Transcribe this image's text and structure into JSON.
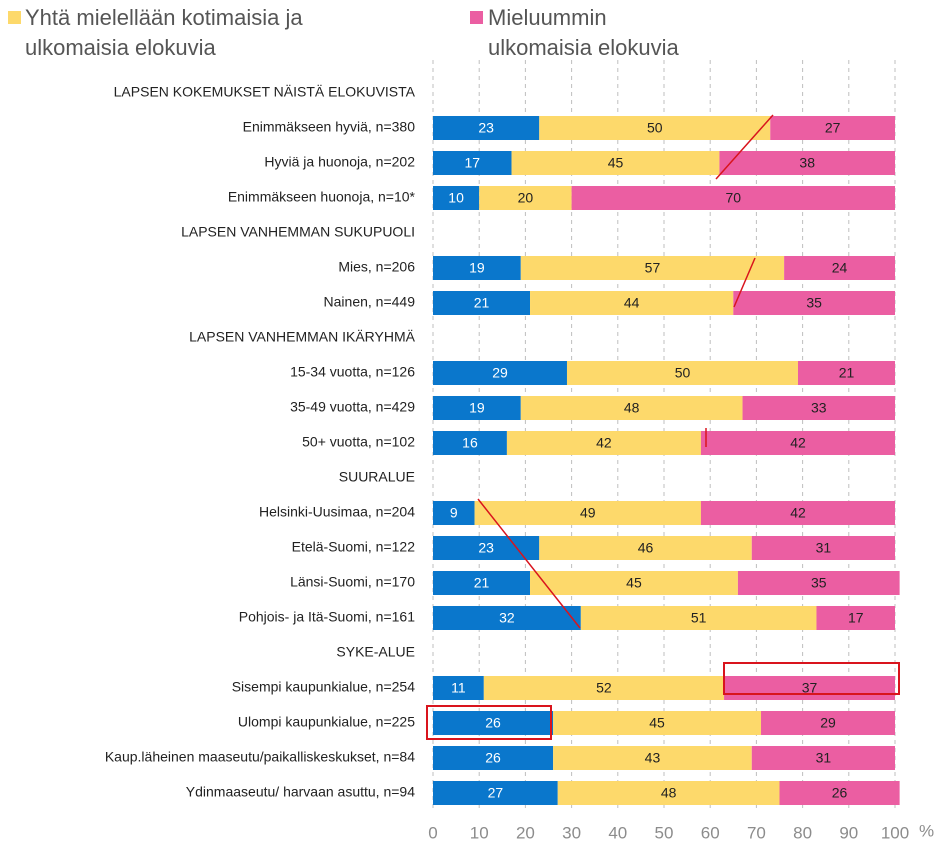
{
  "chart_data": {
    "type": "stacked-bar-horizontal",
    "categories": [
      "LAPSEN KOKEMUKSET NÄISTÄ ELOKUVISTA",
      "Enimmäkseen hyviä, n=380",
      "Hyviä ja huonoja, n=202",
      "Enimmäkseen huonoja, n=10*",
      "LAPSEN VANHEMMAN SUKUPUOLI",
      "Mies, n=206",
      "Nainen, n=449",
      "LAPSEN VANHEMMAN IKÄRYHMÄ",
      "15-34 vuotta, n=126",
      "35-49 vuotta, n=429",
      "50+ vuotta, n=102",
      "SUURALUE",
      "Helsinki-Uusimaa, n=204",
      "Etelä-Suomi, n=122",
      "Länsi-Suomi, n=170",
      "Pohjois- ja Itä-Suomi, n=161",
      "SYKE-ALUE",
      "Sisempi kaupunkialue, n=254",
      "Ulompi kaupunkialue, n=225",
      "Kaup.läheinen maaseutu/paikalliskeskukset, n=84",
      "Ydinmaaseutu/ harvaan asuttu, n=94"
    ],
    "series": [
      {
        "name": null,
        "color": "#0a77cc",
        "label_color": "#ffffff",
        "values": [
          null,
          23,
          17,
          10,
          null,
          19,
          21,
          null,
          29,
          19,
          16,
          null,
          9,
          23,
          21,
          32,
          null,
          11,
          26,
          26,
          27
        ]
      },
      {
        "name": "Yhtä mielellään kotimaisia ja ulkomaisia elokuvia",
        "color": "#fdd96b",
        "label_color": "#222222",
        "values": [
          null,
          50,
          45,
          20,
          null,
          57,
          44,
          null,
          50,
          48,
          42,
          null,
          49,
          46,
          45,
          51,
          null,
          52,
          45,
          43,
          48
        ]
      },
      {
        "name": "Mieluummin ulkomaisia elokuvia",
        "color": "#eb5ea2",
        "label_color": "#222222",
        "values": [
          null,
          27,
          38,
          70,
          null,
          24,
          35,
          null,
          21,
          33,
          42,
          null,
          42,
          31,
          35,
          17,
          null,
          37,
          29,
          31,
          26
        ]
      }
    ],
    "xlim": [
      0,
      100
    ],
    "xticks": [
      0,
      10,
      20,
      30,
      40,
      50,
      60,
      70,
      80,
      90,
      100
    ],
    "x_unit_label": "%",
    "grid": true
  }
}
